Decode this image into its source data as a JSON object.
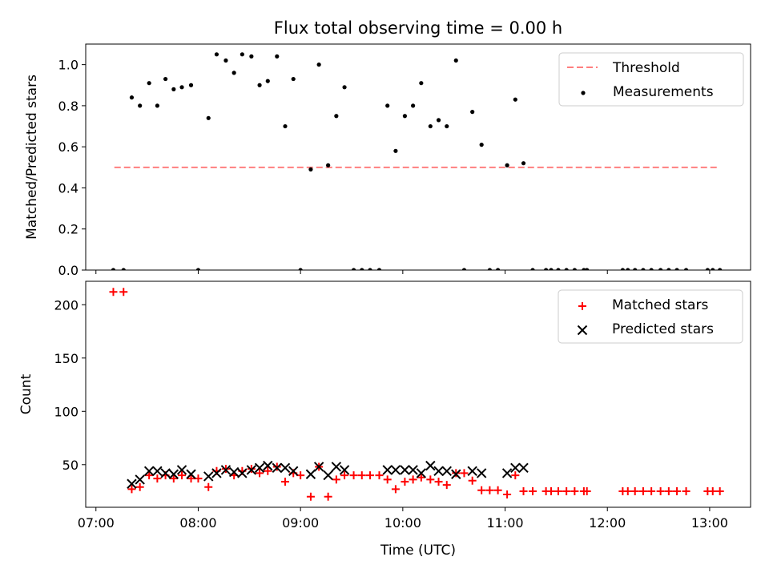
{
  "chart_data": {
    "title": "Flux total observing time = 0.00 h",
    "type": "scatter",
    "xlabel": "Time (UTC)",
    "x_ticks": [
      "07:00",
      "08:00",
      "09:00",
      "10:00",
      "11:00",
      "12:00",
      "13:00"
    ],
    "x_tick_values_hours": [
      7,
      8,
      9,
      10,
      11,
      12,
      13
    ],
    "xlim_hours": [
      6.9,
      13.4
    ],
    "panels": [
      {
        "id": "ratio",
        "type": "scatter",
        "ylabel": "Matched/Predicted stars",
        "ylim": [
          0,
          1.1
        ],
        "y_ticks": [
          "0.0",
          "0.2",
          "0.4",
          "0.6",
          "0.8",
          "1.0"
        ],
        "y_tick_values": [
          0,
          0.2,
          0.4,
          0.6,
          0.8,
          1.0
        ],
        "legend_position": "upper right",
        "series": [
          {
            "name": "Threshold",
            "type": "line",
            "style": "dashed",
            "color": "#ff7f7f",
            "x": [
              7.18,
              13.1
            ],
            "y": [
              0.5,
              0.5
            ]
          },
          {
            "name": "Measurements",
            "type": "scatter",
            "marker": "dot",
            "color": "#000000",
            "x": [
              7.17,
              7.27,
              7.35,
              7.43,
              7.52,
              7.6,
              7.68,
              7.76,
              7.84,
              7.93,
              8.0,
              8.1,
              8.18,
              8.27,
              8.35,
              8.43,
              8.52,
              8.6,
              8.68,
              8.77,
              8.85,
              8.93,
              9.0,
              9.1,
              9.18,
              9.27,
              9.35,
              9.43,
              9.52,
              9.6,
              9.68,
              9.77,
              9.85,
              9.93,
              10.02,
              10.1,
              10.18,
              10.27,
              10.35,
              10.43,
              10.52,
              10.6,
              10.68,
              10.77,
              10.85,
              10.93,
              11.02,
              11.1,
              11.18,
              11.27,
              11.4,
              11.45,
              11.52,
              11.6,
              11.68,
              11.77,
              11.8,
              12.15,
              12.2,
              12.27,
              12.35,
              12.43,
              12.52,
              12.6,
              12.68,
              12.77,
              12.98,
              13.03,
              13.1
            ],
            "y": [
              0.0,
              0.0,
              0.84,
              0.8,
              0.91,
              0.8,
              0.93,
              0.88,
              0.89,
              0.9,
              0.0,
              0.74,
              1.05,
              1.02,
              0.96,
              1.05,
              1.04,
              0.9,
              0.92,
              1.04,
              0.7,
              0.93,
              0.0,
              0.49,
              1.0,
              0.51,
              0.75,
              0.89,
              0.0,
              0.0,
              0.0,
              0.0,
              0.8,
              0.58,
              0.75,
              0.8,
              0.91,
              0.7,
              0.73,
              0.7,
              1.02,
              0.0,
              0.77,
              0.61,
              0.0,
              0.0,
              0.51,
              0.83,
              0.52,
              0.0,
              0.0,
              0.0,
              0.0,
              0.0,
              0.0,
              0.0,
              0.0,
              0.0,
              0.0,
              0.0,
              0.0,
              0.0,
              0.0,
              0.0,
              0.0,
              0.0,
              0.0,
              0.0,
              0.0
            ]
          }
        ]
      },
      {
        "id": "counts",
        "type": "scatter",
        "ylabel": "Count",
        "ylim": [
          10,
          222
        ],
        "y_ticks": [
          "50",
          "100",
          "150",
          "200"
        ],
        "y_tick_values": [
          50,
          100,
          150,
          200
        ],
        "legend_position": "upper right",
        "series": [
          {
            "name": "Matched stars",
            "marker": "plus",
            "color": "#ff0000",
            "x": [
              7.17,
              7.27,
              7.35,
              7.43,
              7.52,
              7.6,
              7.68,
              7.76,
              7.84,
              7.93,
              8.0,
              8.1,
              8.18,
              8.27,
              8.35,
              8.43,
              8.52,
              8.6,
              8.68,
              8.77,
              8.85,
              8.93,
              9.0,
              9.1,
              9.18,
              9.27,
              9.35,
              9.43,
              9.52,
              9.6,
              9.68,
              9.77,
              9.85,
              9.93,
              10.02,
              10.1,
              10.18,
              10.27,
              10.35,
              10.43,
              10.52,
              10.6,
              10.68,
              10.77,
              10.85,
              10.93,
              11.02,
              11.1,
              11.18,
              11.27,
              11.4,
              11.45,
              11.52,
              11.6,
              11.68,
              11.77,
              11.8,
              12.15,
              12.2,
              12.27,
              12.35,
              12.43,
              12.52,
              12.6,
              12.68,
              12.77,
              12.98,
              13.03,
              13.1
            ],
            "y": [
              212,
              212,
              27,
              29,
              40,
              37,
              40,
              37,
              40,
              37,
              37,
              29,
              44,
              46,
              40,
              44,
              46,
              42,
              44,
              48,
              34,
              42,
              40,
              20,
              48,
              20,
              36,
              40,
              40,
              40,
              40,
              40,
              36,
              27,
              34,
              36,
              38,
              36,
              34,
              31,
              42,
              42,
              35,
              26,
              26,
              26,
              22,
              40,
              25,
              25,
              25,
              25,
              25,
              25,
              25,
              25,
              25,
              25,
              25,
              25,
              25,
              25,
              25,
              25,
              25,
              25,
              25,
              25,
              25
            ]
          },
          {
            "name": "Predicted stars",
            "marker": "x",
            "color": "#000000",
            "x": [
              7.35,
              7.43,
              7.52,
              7.6,
              7.68,
              7.76,
              7.84,
              7.93,
              8.1,
              8.18,
              8.27,
              8.35,
              8.43,
              8.52,
              8.6,
              8.68,
              8.77,
              8.85,
              8.93,
              9.1,
              9.18,
              9.27,
              9.35,
              9.43,
              9.85,
              9.93,
              10.02,
              10.1,
              10.18,
              10.27,
              10.35,
              10.43,
              10.52,
              10.68,
              10.77,
              11.02,
              11.1,
              11.18
            ],
            "y": [
              32,
              36,
              44,
              44,
              42,
              41,
              45,
              41,
              39,
              42,
              45,
              43,
              42,
              45,
              47,
              49,
              47,
              47,
              44,
              41,
              48,
              40,
              48,
              45,
              45,
              45,
              45,
              45,
              42,
              49,
              44,
              44,
              41,
              44,
              42,
              42,
              47,
              47
            ]
          }
        ]
      }
    ]
  }
}
